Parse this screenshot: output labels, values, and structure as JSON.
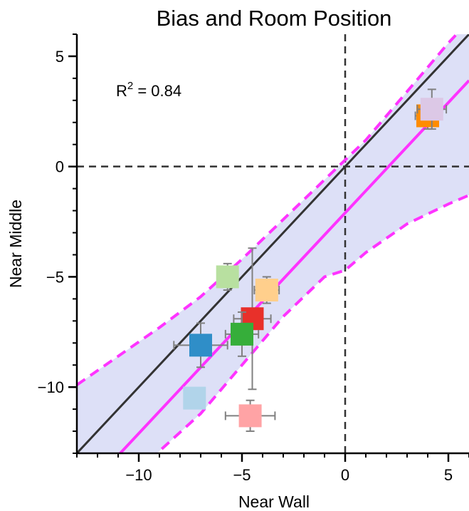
{
  "chart_data": {
    "type": "scatter",
    "title": "Bias and Room Position",
    "xlabel": "Near Wall",
    "ylabel": "Near Middle",
    "xlim": [
      -13,
      6
    ],
    "ylim": [
      -13,
      6
    ],
    "xticks": [
      -10,
      -5,
      0,
      5
    ],
    "yticks": [
      -10,
      -5,
      0,
      5
    ],
    "xtick_labels": [
      "−10",
      "−5",
      "0",
      "5"
    ],
    "ytick_labels": [
      "−10",
      "−5",
      "0",
      "5"
    ],
    "minor_tick_step": 1,
    "grid": false,
    "reference_lines": {
      "x0": 0,
      "y0": 0,
      "identity": true,
      "identity_color": "#333333"
    },
    "annotation": {
      "text": "R",
      "sup": "2",
      "value": " = 0.84"
    },
    "fit": {
      "slope": 1.0,
      "intercept": -2.1,
      "color": "#ff33ff"
    },
    "confidence_band": {
      "color": "#dde0f7",
      "edge_color": "#ff33ff",
      "x": [
        -13,
        -11,
        -9,
        -7,
        -5,
        -3,
        -1,
        0,
        1,
        3,
        5,
        6
      ],
      "upper": [
        -9.9,
        -8.6,
        -7.3,
        -5.9,
        -4.2,
        -2.4,
        -0.6,
        0.3,
        1.2,
        3.4,
        5.6,
        6.6
      ],
      "lower": [
        -16.3,
        -14.6,
        -12.9,
        -11.2,
        -9.0,
        -6.8,
        -5.0,
        -4.7,
        -3.9,
        -2.6,
        -1.7,
        -1.3
      ]
    },
    "points": [
      {
        "x": 4.0,
        "y": 2.3,
        "xerr": 0.6,
        "yerr": 0.6,
        "color": "#ff8c00"
      },
      {
        "x": 4.2,
        "y": 2.6,
        "xerr": 0.7,
        "yerr": 0.9,
        "color": "#dcc8e6"
      },
      {
        "x": -5.7,
        "y": -5.0,
        "xerr": 0.5,
        "yerr": 0.6,
        "color": "#b8e0a0"
      },
      {
        "x": -3.8,
        "y": -5.6,
        "xerr": 0.6,
        "yerr": 0.6,
        "color": "#ffcf8c"
      },
      {
        "x": -4.5,
        "y": -6.9,
        "xerr": 0.9,
        "yerr": 3.2,
        "color": "#e8302a"
      },
      {
        "x": -5.0,
        "y": -7.6,
        "xerr": 0.8,
        "yerr": 1.0,
        "color": "#36ae3a"
      },
      {
        "x": -7.0,
        "y": -8.1,
        "xerr": 1.3,
        "yerr": 1.0,
        "color": "#2f8ec8"
      },
      {
        "x": -7.3,
        "y": -10.5,
        "xerr": 0.0,
        "yerr": 0.0,
        "color": "#b1d4ea"
      },
      {
        "x": -4.6,
        "y": -11.3,
        "xerr": 1.2,
        "yerr": 0.7,
        "color": "#ffa3a5"
      }
    ],
    "errorbar_color": "#808080"
  }
}
